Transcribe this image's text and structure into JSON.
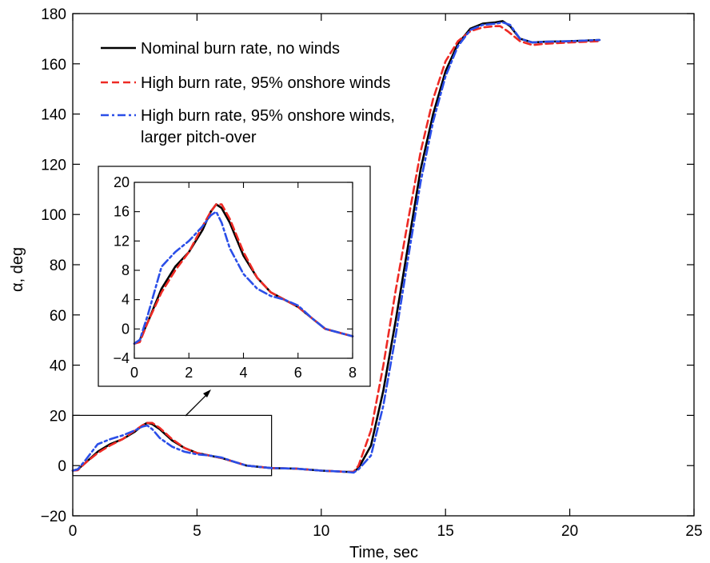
{
  "chart_data": {
    "type": "line",
    "title": "",
    "xlabel": "Time, sec",
    "ylabel": "α, deg",
    "xlim": [
      0,
      25
    ],
    "ylim": [
      -20,
      180
    ],
    "xticks": [
      "0",
      "5",
      "10",
      "15",
      "20",
      "25"
    ],
    "yticks": [
      "−20",
      "0",
      "20",
      "40",
      "60",
      "80",
      "100",
      "120",
      "140",
      "160",
      "180"
    ],
    "legend": "top-left",
    "grid": false,
    "series": [
      {
        "name": "Nominal burn rate, no winds",
        "color": "#000000",
        "dash": "solid",
        "x": [
          0,
          0.2,
          0.5,
          1,
          1.5,
          2,
          2.5,
          2.8,
          3,
          3.2,
          3.5,
          4,
          4.5,
          5,
          5.5,
          6,
          6.5,
          7,
          7.5,
          8,
          9,
          10,
          11,
          11.3,
          11.5,
          12,
          12.5,
          13,
          13.5,
          14,
          14.5,
          15,
          15.5,
          16,
          16.5,
          17,
          17.3,
          17.6,
          18,
          18.5,
          19,
          20,
          21.2
        ],
        "y": [
          -2,
          -1.5,
          1,
          5.5,
          8.5,
          10.5,
          13.5,
          16,
          17,
          16.5,
          14.5,
          10,
          7,
          5,
          4,
          3,
          1.5,
          0,
          -0.5,
          -1,
          -1.2,
          -2,
          -2.5,
          -2.5,
          -1,
          8,
          30,
          58,
          88,
          118,
          140,
          157,
          168,
          174,
          176,
          176.5,
          177,
          175,
          170,
          168.5,
          168.8,
          169,
          169.5
        ]
      },
      {
        "name": "High burn rate, 95% onshore winds",
        "color": "#ee2a24",
        "dash": "dashed",
        "x": [
          0,
          0.2,
          0.5,
          1,
          1.5,
          2,
          2.5,
          2.8,
          3,
          3.2,
          3.5,
          4,
          4.5,
          5,
          5.5,
          6,
          6.5,
          7,
          7.5,
          8,
          9,
          10,
          11,
          11.3,
          11.5,
          12,
          12.5,
          13,
          13.5,
          14,
          14.5,
          15,
          15.5,
          16,
          16.5,
          17,
          17.2,
          17.5,
          18,
          18.5,
          19,
          20,
          21.2
        ],
        "y": [
          -2,
          -1.8,
          1,
          5,
          8,
          10.5,
          14,
          16,
          17,
          17,
          15,
          10.5,
          7,
          5,
          4,
          3,
          1.5,
          0,
          -0.5,
          -1,
          -1.2,
          -2,
          -2.5,
          -2.5,
          0,
          14,
          40,
          70,
          98,
          125,
          146,
          161,
          169,
          173,
          174.5,
          175,
          175,
          173,
          169,
          167.5,
          168,
          168.5,
          169
        ]
      },
      {
        "name": "High burn rate, 95% onshore winds, larger pitch-over",
        "color": "#2a4ee8",
        "dash": "dashdot",
        "x": [
          0,
          0.2,
          0.5,
          1,
          1.5,
          2,
          2.5,
          2.8,
          3,
          3.2,
          3.5,
          4,
          4.5,
          5,
          5.5,
          6,
          6.5,
          7,
          7.5,
          8,
          9,
          10,
          11,
          11.3,
          11.5,
          12,
          12.5,
          13,
          13.5,
          14,
          14.5,
          15,
          15.5,
          16,
          16.5,
          17,
          17.3,
          17.6,
          18,
          18.5,
          19,
          20,
          21.2
        ],
        "y": [
          -2,
          -1.5,
          2,
          8.5,
          10.5,
          12,
          14,
          15.5,
          16,
          14.5,
          11,
          7.5,
          5.5,
          4.5,
          4,
          3.2,
          1.5,
          0,
          -0.5,
          -1,
          -1.2,
          -2,
          -2.5,
          -2.8,
          -1.5,
          4,
          24,
          52,
          83,
          113,
          137,
          155,
          167,
          173.5,
          175.5,
          176,
          176.5,
          175.5,
          170,
          168.5,
          168.8,
          169,
          169.5
        ]
      }
    ],
    "legend_labels": [
      "Nominal burn rate, no winds",
      "High burn rate, 95% onshore winds",
      "High burn rate, 95% onshore winds,",
      "larger pitch-over"
    ],
    "inset": {
      "xlim": [
        0,
        8
      ],
      "ylim": [
        -4,
        20
      ],
      "xticks": [
        "0",
        "2",
        "4",
        "6",
        "8"
      ],
      "yticks": [
        "−4",
        "0",
        "4",
        "8",
        "12",
        "16",
        "20"
      ],
      "zoom_region": {
        "xlim": [
          0,
          8
        ],
        "ylim": [
          -4,
          20
        ]
      }
    }
  }
}
